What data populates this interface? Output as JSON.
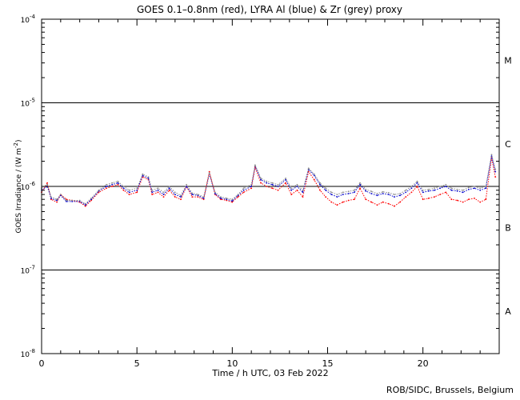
{
  "chart_data": {
    "type": "line",
    "title": "GOES 0.1–0.8nm (red), LYRA Al (blue) & Zr (grey) proxy",
    "xlabel": "Time / h UTC, 03 Feb 2022",
    "ylabel_main": "GOES Irradiance / (W m",
    "ylabel_sup": "-2",
    "ylabel_end": ")",
    "xlim": [
      0,
      24
    ],
    "ylim": [
      1e-08,
      0.0001
    ],
    "yscale": "log",
    "x_ticks": [
      0,
      5,
      10,
      15,
      20
    ],
    "x_tick_labels": [
      "0",
      "5",
      "10",
      "15",
      "20"
    ],
    "y_ticks": [
      {
        "value": 0.0001,
        "base": "10",
        "exp": "-4"
      },
      {
        "value": 1e-05,
        "base": "10",
        "exp": "-5"
      },
      {
        "value": 1e-06,
        "base": "10",
        "exp": "-6"
      },
      {
        "value": 1e-07,
        "base": "10",
        "exp": "-7"
      },
      {
        "value": 1e-08,
        "base": "10",
        "exp": "-8"
      }
    ],
    "threshold_lines": [
      1e-05,
      1e-06,
      1e-07
    ],
    "class_labels": [
      {
        "label": "M",
        "value": 3.2e-05
      },
      {
        "label": "C",
        "value": 3.2e-06
      },
      {
        "label": "B",
        "value": 3.2e-07
      },
      {
        "label": "A",
        "value": 3.2e-08
      }
    ],
    "series": [
      {
        "color": "#ff0000",
        "x": [
          0.0,
          0.3,
          0.5,
          0.8,
          1.0,
          1.3,
          1.6,
          2.0,
          2.3,
          2.6,
          3.0,
          3.4,
          3.7,
          4.0,
          4.3,
          4.6,
          5.0,
          5.3,
          5.6,
          5.8,
          6.1,
          6.4,
          6.7,
          7.0,
          7.3,
          7.6,
          7.9,
          8.2,
          8.5,
          8.8,
          9.1,
          9.4,
          9.7,
          10.0,
          10.3,
          10.6,
          11.0,
          11.2,
          11.5,
          11.8,
          12.1,
          12.4,
          12.8,
          13.1,
          13.4,
          13.7,
          14.0,
          14.3,
          14.6,
          14.9,
          15.2,
          15.5,
          15.8,
          16.1,
          16.4,
          16.7,
          17.0,
          17.3,
          17.6,
          17.9,
          18.2,
          18.5,
          18.8,
          19.1,
          19.4,
          19.7,
          20.0,
          20.3,
          20.6,
          20.9,
          21.2,
          21.5,
          21.8,
          22.1,
          22.4,
          22.7,
          23.0,
          23.3,
          23.6,
          23.8
        ],
        "y": [
          8.5e-07,
          1.1e-06,
          7e-07,
          6.5e-07,
          8e-07,
          7e-07,
          6.8e-07,
          6.5e-07,
          5.8e-07,
          6.8e-07,
          8.5e-07,
          9.5e-07,
          1e-06,
          1.05e-06,
          9e-07,
          8e-07,
          8.5e-07,
          1.3e-06,
          1.2e-06,
          8e-07,
          8.5e-07,
          7.5e-07,
          9e-07,
          7.5e-07,
          7e-07,
          1e-06,
          7.5e-07,
          7.5e-07,
          7e-07,
          1.5e-06,
          8e-07,
          7e-07,
          6.8e-07,
          6.5e-07,
          7.5e-07,
          8.5e-07,
          9.5e-07,
          1.7e-06,
          1.1e-06,
          1e-06,
          9.5e-07,
          9e-07,
          1.1e-06,
          8e-07,
          9e-07,
          7.5e-07,
          1.5e-06,
          1.2e-06,
          9e-07,
          7.5e-07,
          6.5e-07,
          6e-07,
          6.5e-07,
          6.8e-07,
          7e-07,
          9.5e-07,
          7e-07,
          6.5e-07,
          6e-07,
          6.5e-07,
          6.2e-07,
          5.8e-07,
          6.5e-07,
          7.5e-07,
          8.5e-07,
          1e-06,
          7e-07,
          7.2e-07,
          7.5e-07,
          8e-07,
          8.5e-07,
          7e-07,
          6.8e-07,
          6.5e-07,
          7e-07,
          7.2e-07,
          6.5e-07,
          7e-07,
          2.2e-06,
          1.3e-06
        ]
      },
      {
        "color": "#0000cc",
        "x": [
          0.0,
          0.3,
          0.5,
          0.8,
          1.0,
          1.3,
          1.6,
          2.0,
          2.3,
          2.6,
          3.0,
          3.4,
          3.7,
          4.0,
          4.3,
          4.6,
          5.0,
          5.3,
          5.6,
          5.8,
          6.1,
          6.4,
          6.7,
          7.0,
          7.3,
          7.6,
          7.9,
          8.2,
          8.5,
          8.8,
          9.1,
          9.4,
          9.7,
          10.0,
          10.3,
          10.6,
          11.0,
          11.2,
          11.5,
          11.8,
          12.1,
          12.4,
          12.8,
          13.1,
          13.4,
          13.7,
          14.0,
          14.3,
          14.6,
          14.9,
          15.2,
          15.5,
          15.8,
          16.1,
          16.4,
          16.7,
          17.0,
          17.3,
          17.6,
          17.9,
          18.2,
          18.5,
          18.8,
          19.1,
          19.4,
          19.7,
          20.0,
          20.3,
          20.6,
          20.9,
          21.2,
          21.5,
          21.8,
          22.1,
          22.4,
          22.7,
          23.0,
          23.3,
          23.6,
          23.8
        ],
        "y": [
          9e-07,
          1e-06,
          7.2e-07,
          6.8e-07,
          7.8e-07,
          6.6e-07,
          6.6e-07,
          6.6e-07,
          6e-07,
          7e-07,
          8.8e-07,
          1e-06,
          1.05e-06,
          1.1e-06,
          9.5e-07,
          8.5e-07,
          9e-07,
          1.35e-06,
          1.25e-06,
          8.5e-07,
          9e-07,
          8e-07,
          9.5e-07,
          8e-07,
          7.5e-07,
          1e-06,
          8e-07,
          7.8e-07,
          7.2e-07,
          1.4e-06,
          8.2e-07,
          7.2e-07,
          7e-07,
          6.7e-07,
          7.8e-07,
          9e-07,
          1e-06,
          1.75e-06,
          1.2e-06,
          1.1e-06,
          1.05e-06,
          1e-06,
          1.2e-06,
          9e-07,
          1e-06,
          8.5e-07,
          1.6e-06,
          1.35e-06,
          1.05e-06,
          9e-07,
          8e-07,
          7.5e-07,
          8e-07,
          8.2e-07,
          8.5e-07,
          1.05e-06,
          8.8e-07,
          8.2e-07,
          7.8e-07,
          8.2e-07,
          8e-07,
          7.5e-07,
          7.8e-07,
          8.5e-07,
          9.5e-07,
          1.1e-06,
          8.5e-07,
          8.8e-07,
          9e-07,
          9.5e-07,
          1e-06,
          9e-07,
          8.8e-07,
          8.5e-07,
          9.2e-07,
          9.5e-07,
          9e-07,
          9.5e-07,
          2.3e-06,
          1.5e-06
        ]
      },
      {
        "color": "#8c8c8c",
        "x": [
          0.0,
          0.3,
          0.5,
          0.8,
          1.0,
          1.3,
          1.6,
          2.0,
          2.3,
          2.6,
          3.0,
          3.4,
          3.7,
          4.0,
          4.3,
          4.6,
          5.0,
          5.3,
          5.6,
          5.8,
          6.1,
          6.4,
          6.7,
          7.0,
          7.3,
          7.6,
          7.9,
          8.2,
          8.5,
          8.8,
          9.1,
          9.4,
          9.7,
          10.0,
          10.3,
          10.6,
          11.0,
          11.2,
          11.5,
          11.8,
          12.1,
          12.4,
          12.8,
          13.1,
          13.4,
          13.7,
          14.0,
          14.3,
          14.6,
          14.9,
          15.2,
          15.5,
          15.8,
          16.1,
          16.4,
          16.7,
          17.0,
          17.3,
          17.6,
          17.9,
          18.2,
          18.5,
          18.8,
          19.1,
          19.4,
          19.7,
          20.0,
          20.3,
          20.6,
          20.9,
          21.2,
          21.5,
          21.8,
          22.1,
          22.4,
          22.7,
          23.0,
          23.3,
          23.6,
          23.8
        ],
        "y": [
          9.5e-07,
          1.05e-06,
          7.5e-07,
          7e-07,
          8e-07,
          6.8e-07,
          6.8e-07,
          6.8e-07,
          6.2e-07,
          7.2e-07,
          9e-07,
          1.05e-06,
          1.1e-06,
          1.15e-06,
          1e-06,
          9e-07,
          9.5e-07,
          1.4e-06,
          1.3e-06,
          9e-07,
          9.5e-07,
          8.5e-07,
          1e-06,
          8.5e-07,
          7.8e-07,
          1.05e-06,
          8.3e-07,
          8e-07,
          7.5e-07,
          1.45e-06,
          8.5e-07,
          7.5e-07,
          7.2e-07,
          7e-07,
          8e-07,
          9.5e-07,
          1.05e-06,
          1.8e-06,
          1.25e-06,
          1.15e-06,
          1.1e-06,
          1.05e-06,
          1.25e-06,
          9.5e-07,
          1.05e-06,
          9e-07,
          1.65e-06,
          1.4e-06,
          1.1e-06,
          9.5e-07,
          8.5e-07,
          8e-07,
          8.5e-07,
          8.7e-07,
          9e-07,
          1.1e-06,
          9.2e-07,
          8.7e-07,
          8.2e-07,
          8.6e-07,
          8.4e-07,
          8e-07,
          8.2e-07,
          9e-07,
          1e-06,
          1.15e-06,
          9e-07,
          9.2e-07,
          9.5e-07,
          1e-06,
          1.05e-06,
          9.5e-07,
          9.2e-07,
          9e-07,
          9.7e-07,
          1e-06,
          9.5e-07,
          1e-06,
          2.4e-06,
          1.6e-06
        ]
      }
    ]
  },
  "credit": "ROB/SIDC, Brussels, Belgium"
}
